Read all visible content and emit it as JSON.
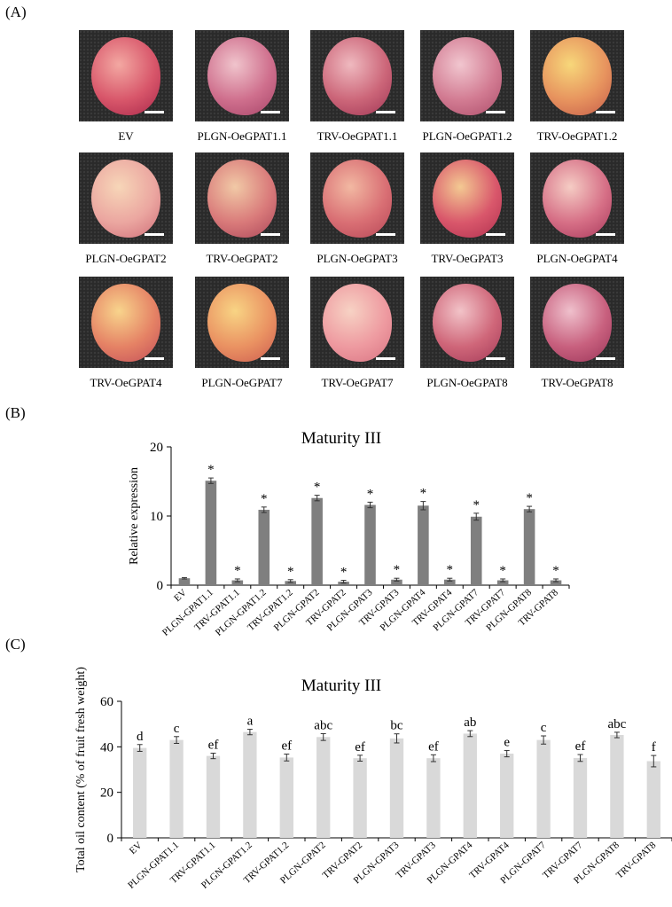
{
  "panels": {
    "a": "(A)",
    "b": "(B)",
    "c": "(C)"
  },
  "fruits": [
    {
      "label": "EV",
      "colors": [
        "#f3a8a2",
        "#d8566a",
        "#a8274a"
      ]
    },
    {
      "label": "PLGN-OeGPAT1.1",
      "colors": [
        "#f0c4cc",
        "#cf6f8d",
        "#a64468"
      ]
    },
    {
      "label": "TRV-OeGPAT1.1",
      "colors": [
        "#efb9bf",
        "#cc6679",
        "#9f3554"
      ]
    },
    {
      "label": "PLGN-OeGPAT1.2",
      "colors": [
        "#f1c6cf",
        "#d27b92",
        "#ac4d6a"
      ]
    },
    {
      "label": "TRV-OeGPAT1.2",
      "colors": [
        "#f7d77a",
        "#e7935e",
        "#c45b4a"
      ]
    },
    {
      "label": "PLGN-OeGPAT2",
      "colors": [
        "#f7d6b8",
        "#eba6a0",
        "#cf6d78"
      ]
    },
    {
      "label": "TRV-OeGPAT2",
      "colors": [
        "#f1c9a6",
        "#d97a7a",
        "#ab4659"
      ]
    },
    {
      "label": "PLGN-OeGPAT3",
      "colors": [
        "#f2b8a2",
        "#d96f74",
        "#b64656"
      ]
    },
    {
      "label": "TRV-OeGPAT3",
      "colors": [
        "#f3c992",
        "#d9576b",
        "#b0304f"
      ]
    },
    {
      "label": "PLGN-OeGPAT4",
      "colors": [
        "#f5ccc4",
        "#d66f86",
        "#a8385b"
      ]
    },
    {
      "label": "TRV-OeGPAT4",
      "colors": [
        "#f8d48c",
        "#e58265",
        "#c24e59"
      ]
    },
    {
      "label": "PLGN-OeGPAT7",
      "colors": [
        "#f8d484",
        "#ea9262",
        "#cc5b50"
      ]
    },
    {
      "label": "TRV-OeGPAT7",
      "colors": [
        "#f7d2c4",
        "#ee9aa0",
        "#d87382"
      ]
    },
    {
      "label": "PLGN-OeGPAT8",
      "colors": [
        "#f2c3c8",
        "#cf6679",
        "#a33a58"
      ]
    },
    {
      "label": "TRV-OeGPAT8",
      "colors": [
        "#efc0cc",
        "#c8607e",
        "#9a3458"
      ]
    }
  ],
  "chart_data": [
    {
      "type": "bar",
      "title": "Maturity III",
      "xlabel": "",
      "ylabel": "Relative expression",
      "ylim": [
        0,
        20
      ],
      "yticks": [
        0,
        10,
        20
      ],
      "color": "#7f7f7f",
      "grid": false,
      "categories": [
        "EV",
        "PLGN-GPAT1.1",
        "TRV-GPAT1.1",
        "PLGN-GPAT1.2",
        "TRV-GPAT1.2",
        "PLGN-GPAT2",
        "TRV-GPAT2",
        "PLGN-GPAT3",
        "TRV-GPAT3",
        "PLGN-GPAT4",
        "TRV-GPAT4",
        "PLGN-GPAT7",
        "TRV-GPAT7",
        "PLGN-GPAT8",
        "TRV-GPAT8"
      ],
      "values": [
        1.0,
        15.1,
        0.7,
        10.9,
        0.6,
        12.6,
        0.5,
        11.6,
        0.8,
        11.5,
        0.8,
        9.9,
        0.7,
        11.0,
        0.7
      ],
      "errors": [
        0.1,
        0.4,
        0.2,
        0.4,
        0.2,
        0.4,
        0.2,
        0.4,
        0.2,
        0.6,
        0.2,
        0.5,
        0.2,
        0.4,
        0.2
      ],
      "annotations": [
        "",
        "*",
        "*",
        "*",
        "*",
        "*",
        "*",
        "*",
        "*",
        "*",
        "*",
        "*",
        "*",
        "*",
        "*"
      ]
    },
    {
      "type": "bar",
      "title": "Maturity III",
      "xlabel": "",
      "ylabel": "Total oil content (% of fruit fresh weight)",
      "ylim": [
        0,
        60
      ],
      "yticks": [
        0,
        20,
        40,
        60
      ],
      "color": "#d9d9d9",
      "grid": false,
      "categories": [
        "EV",
        "PLGN-GPAT1.1",
        "TRV-GPAT1.1",
        "PLGN-GPAT1.2",
        "TRV-GPAT1.2",
        "PLGN-GPAT2",
        "TRV-GPAT2",
        "PLGN-GPAT3",
        "TRV-GPAT3",
        "PLGN-GPAT4",
        "TRV-GPAT4",
        "PLGN-GPAT7",
        "TRV-GPAT7",
        "PLGN-GPAT8",
        "TRV-GPAT8"
      ],
      "values": [
        39.5,
        43.0,
        36.0,
        46.5,
        35.3,
        44.3,
        35.0,
        43.7,
        35.0,
        45.8,
        37.0,
        43.0,
        35.1,
        45.2,
        33.7
      ],
      "errors": [
        1.5,
        1.5,
        1.2,
        1.2,
        1.5,
        1.5,
        1.3,
        2.0,
        1.5,
        1.3,
        1.4,
        1.8,
        1.5,
        1.2,
        2.5
      ],
      "annotations": [
        "d",
        "c",
        "ef",
        "a",
        "ef",
        "abc",
        "ef",
        "bc",
        "ef",
        "ab",
        "e",
        "c",
        "ef",
        "abc",
        "f"
      ]
    }
  ]
}
